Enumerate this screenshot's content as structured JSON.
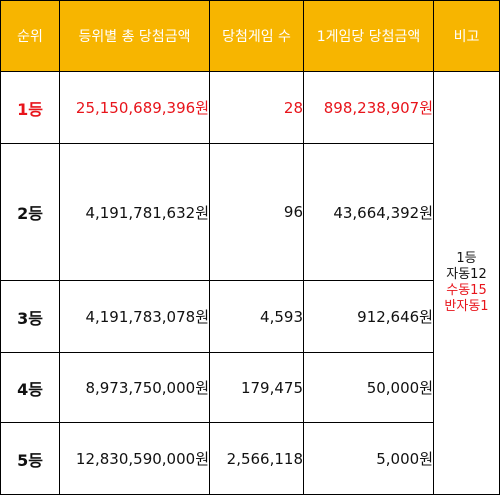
{
  "colors": {
    "header_bg": "#f7b500",
    "header_text": "#ffffff",
    "highlight": "#e8141b"
  },
  "headers": {
    "rank": "순위",
    "total_prize": "등위별 총 당첨금액",
    "winning_games": "당첨게임 수",
    "prize_per_game": "1게임당 당첨금액",
    "note": "비고"
  },
  "rows": [
    {
      "rank": "1등",
      "total_prize": "25,150,689,396원",
      "winning_games": "28",
      "prize_per_game": "898,238,907원"
    },
    {
      "rank": "2등",
      "total_prize": "4,191,781,632원",
      "winning_games": "96",
      "prize_per_game": "43,664,392원"
    },
    {
      "rank": "3등",
      "total_prize": "4,191,783,078원",
      "winning_games": "4,593",
      "prize_per_game": "912,646원"
    },
    {
      "rank": "4등",
      "total_prize": "8,973,750,000원",
      "winning_games": "179,475",
      "prize_per_game": "50,000원"
    },
    {
      "rank": "5등",
      "total_prize": "12,830,590,000원",
      "winning_games": "2,566,118",
      "prize_per_game": "5,000원"
    }
  ],
  "note": {
    "line1": "1등",
    "line2": "자동12",
    "line3": "수동15",
    "line4": "반자동1"
  }
}
